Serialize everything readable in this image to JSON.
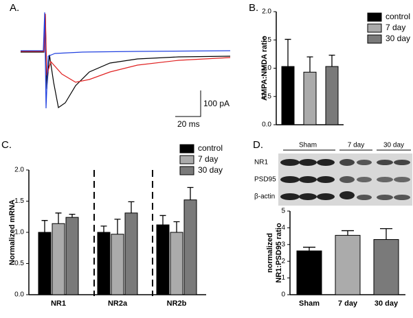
{
  "panel_labels": [
    "A.",
    "B.",
    "C.",
    "D."
  ],
  "trace_panel": {
    "scale_y": "100 pA",
    "scale_x": "20 ms"
  },
  "blot": {
    "groups": [
      "Sham",
      "7 day",
      "30 day"
    ],
    "bands": [
      "NR1",
      "PSD95",
      "β-actin"
    ]
  },
  "chart_data": [
    {
      "type": "bar",
      "ylabel": "AMPA:NMDA ratio",
      "categories": [
        null
      ],
      "series": [
        {
          "name": "control",
          "color": "#000000",
          "values": [
            1.03
          ],
          "errors": [
            0.48
          ]
        },
        {
          "name": "7 day",
          "color": "#ababab",
          "values": [
            0.93
          ],
          "errors": [
            0.27
          ]
        },
        {
          "name": "30 day",
          "color": "#7a7a7a",
          "values": [
            1.03
          ],
          "errors": [
            0.2
          ]
        }
      ],
      "ylim": [
        0,
        2
      ],
      "yticks": [
        {
          "value": 0,
          "label": "0.0"
        },
        {
          "value": 0.5,
          "label": "0.5"
        },
        {
          "value": 1,
          "label": "1.0"
        },
        {
          "value": 1.5,
          "label": "1.5"
        },
        {
          "value": 2,
          "label": "2.0"
        }
      ],
      "grid": false,
      "legend": "upper right"
    },
    {
      "type": "bar",
      "ylabel": "Normalized mRNA",
      "categories": [
        "NR1",
        "NR2a",
        "NR2b"
      ],
      "series": [
        {
          "name": "control",
          "color": "#000000",
          "values": [
            1.0,
            1.0,
            1.12
          ],
          "errors": [
            0.19,
            0.1,
            0.15
          ]
        },
        {
          "name": "7 day",
          "color": "#ababab",
          "values": [
            1.14,
            0.97,
            1.0
          ],
          "errors": [
            0.17,
            0.24,
            0.17
          ]
        },
        {
          "name": "30 day",
          "color": "#7a7a7a",
          "values": [
            1.24,
            1.31,
            1.52
          ],
          "errors": [
            0.05,
            0.18,
            0.2
          ]
        }
      ],
      "ylim": [
        0,
        2
      ],
      "yticks": [
        {
          "value": 0,
          "label": "0.0"
        },
        {
          "value": 0.5,
          "label": "0.5"
        },
        {
          "value": 1,
          "label": "1.0"
        },
        {
          "value": 1.5,
          "label": "1.5"
        },
        {
          "value": 2,
          "label": "2.0"
        }
      ],
      "grid": false,
      "legend": "upper right"
    },
    {
      "type": "bar",
      "ylabel": [
        "normalized",
        "NR1:PSD95 ratio"
      ],
      "categories": [
        "Sham",
        "7 day",
        "30 day"
      ],
      "values": [
        2.62,
        3.55,
        3.3
      ],
      "errors": [
        0.22,
        0.28,
        0.65
      ],
      "colors": [
        "#000000",
        "#ababab",
        "#7a7a7a"
      ],
      "ylim": [
        0,
        5
      ],
      "yticks": [
        0,
        1,
        2,
        3,
        4,
        5
      ],
      "grid": false
    }
  ]
}
